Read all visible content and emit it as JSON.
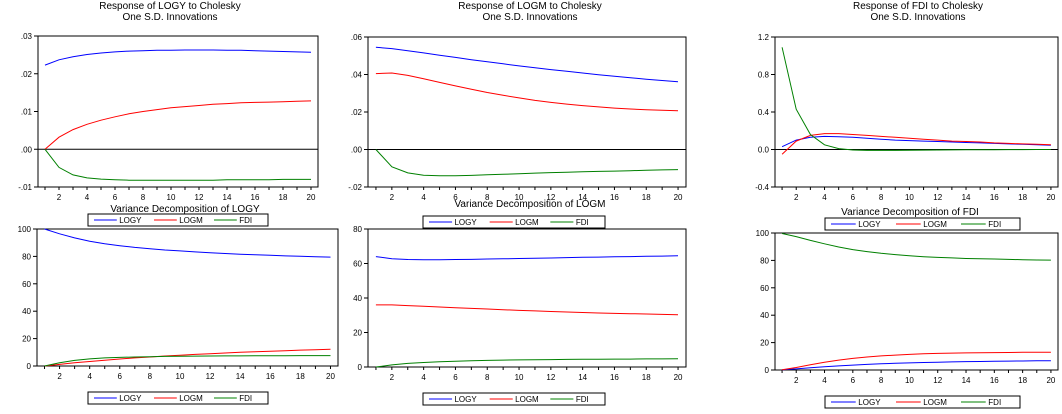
{
  "colors": {
    "LOGY": "#0000ff",
    "LOGM": "#ff0000",
    "FDI": "#008000",
    "axis": "#000000"
  },
  "chart_data": [
    {
      "type": "line",
      "title": [
        "Response of LOGY to Cholesky",
        "One S.D. Innovations"
      ],
      "x": [
        1,
        2,
        3,
        4,
        5,
        6,
        7,
        8,
        9,
        10,
        11,
        12,
        13,
        14,
        15,
        16,
        17,
        18,
        19,
        20
      ],
      "xticks": [
        "2",
        "4",
        "6",
        "8",
        "10",
        "12",
        "14",
        "16",
        "18",
        "20"
      ],
      "ylim": [
        -0.01,
        0.03
      ],
      "yticks": [
        ".03",
        ".02",
        ".01",
        ".00",
        "-.01"
      ],
      "ytick_values": [
        0.03,
        0.02,
        0.01,
        0.0,
        -0.01
      ],
      "zero_line": true,
      "series": [
        {
          "name": "LOGY",
          "values": [
            0.0223,
            0.0237,
            0.0245,
            0.0251,
            0.0255,
            0.0258,
            0.026,
            0.0261,
            0.0262,
            0.0262,
            0.0263,
            0.0263,
            0.0263,
            0.0262,
            0.0262,
            0.0261,
            0.026,
            0.0259,
            0.0258,
            0.0257
          ]
        },
        {
          "name": "LOGM",
          "values": [
            0.0,
            0.0032,
            0.0052,
            0.0066,
            0.0077,
            0.0086,
            0.0094,
            0.01,
            0.0105,
            0.011,
            0.0113,
            0.0116,
            0.0119,
            0.0121,
            0.0123,
            0.0124,
            0.0125,
            0.0126,
            0.0127,
            0.0128
          ]
        },
        {
          "name": "FDI",
          "values": [
            0.0,
            -0.0048,
            -0.0068,
            -0.0076,
            -0.0079,
            -0.0081,
            -0.0082,
            -0.0082,
            -0.0082,
            -0.0082,
            -0.0082,
            -0.0082,
            -0.0082,
            -0.0081,
            -0.0081,
            -0.0081,
            -0.0081,
            -0.008,
            -0.008,
            -0.008
          ]
        }
      ],
      "legend": [
        "LOGY",
        "LOGM",
        "FDI"
      ]
    },
    {
      "type": "line",
      "title": [
        "Response of LOGM to Cholesky",
        "One S.D. Innovations"
      ],
      "x": [
        1,
        2,
        3,
        4,
        5,
        6,
        7,
        8,
        9,
        10,
        11,
        12,
        13,
        14,
        15,
        16,
        17,
        18,
        19,
        20
      ],
      "xticks": [
        "2",
        "4",
        "6",
        "8",
        "10",
        "12",
        "14",
        "16",
        "18",
        "20"
      ],
      "ylim": [
        -0.02,
        0.06
      ],
      "yticks": [
        ".06",
        ".04",
        ".02",
        ".00",
        "-.02"
      ],
      "ytick_values": [
        0.06,
        0.04,
        0.02,
        0.0,
        -0.02
      ],
      "zero_line": true,
      "series": [
        {
          "name": "LOGY",
          "values": [
            0.0545,
            0.0538,
            0.0527,
            0.0515,
            0.0503,
            0.0491,
            0.0479,
            0.0468,
            0.0457,
            0.0446,
            0.0436,
            0.0426,
            0.0417,
            0.0408,
            0.0399,
            0.0391,
            0.0383,
            0.0375,
            0.0368,
            0.0361
          ]
        },
        {
          "name": "LOGM",
          "values": [
            0.0405,
            0.0408,
            0.0395,
            0.0377,
            0.0358,
            0.0339,
            0.0321,
            0.0304,
            0.0289,
            0.0275,
            0.0262,
            0.0251,
            0.0242,
            0.0234,
            0.0227,
            0.0221,
            0.0216,
            0.0212,
            0.0209,
            0.0207
          ]
        },
        {
          "name": "FDI",
          "values": [
            0.0,
            -0.0092,
            -0.0125,
            -0.0137,
            -0.014,
            -0.014,
            -0.0138,
            -0.0135,
            -0.0132,
            -0.0129,
            -0.0126,
            -0.0123,
            -0.0121,
            -0.0119,
            -0.0117,
            -0.0115,
            -0.0113,
            -0.0111,
            -0.0109,
            -0.0107
          ]
        }
      ],
      "legend": [
        "LOGY",
        "LOGM",
        "FDI"
      ]
    },
    {
      "type": "line",
      "title": [
        "Response of FDI to Cholesky",
        "One S.D. Innovations"
      ],
      "x": [
        1,
        2,
        3,
        4,
        5,
        6,
        7,
        8,
        9,
        10,
        11,
        12,
        13,
        14,
        15,
        16,
        17,
        18,
        19,
        20
      ],
      "xticks": [
        "2",
        "4",
        "6",
        "8",
        "10",
        "12",
        "14",
        "16",
        "18",
        "20"
      ],
      "ylim": [
        -0.4,
        1.2
      ],
      "yticks": [
        "1.2",
        "0.8",
        "0.4",
        "0.0",
        "-0.4"
      ],
      "ytick_values": [
        1.2,
        0.8,
        0.4,
        0.0,
        -0.4
      ],
      "zero_line": true,
      "series": [
        {
          "name": "LOGY",
          "values": [
            0.03,
            0.1,
            0.13,
            0.14,
            0.135,
            0.13,
            0.12,
            0.11,
            0.1,
            0.095,
            0.09,
            0.085,
            0.08,
            0.075,
            0.07,
            0.065,
            0.06,
            0.055,
            0.05,
            0.045
          ]
        },
        {
          "name": "LOGM",
          "values": [
            -0.05,
            0.09,
            0.15,
            0.17,
            0.17,
            0.16,
            0.15,
            0.14,
            0.13,
            0.12,
            0.11,
            0.1,
            0.09,
            0.085,
            0.08,
            0.07,
            0.065,
            0.06,
            0.055,
            0.05
          ]
        },
        {
          "name": "FDI",
          "values": [
            1.09,
            0.43,
            0.16,
            0.05,
            0.01,
            -0.005,
            -0.01,
            -0.01,
            -0.01,
            -0.008,
            -0.006,
            -0.005,
            -0.004,
            -0.003,
            -0.002,
            -0.002,
            -0.001,
            -0.001,
            0.0,
            0.0
          ]
        }
      ],
      "legend": [
        "LOGY",
        "LOGM",
        "FDI"
      ]
    },
    {
      "type": "line",
      "title": [
        "Variance Decomposition of LOGY"
      ],
      "x": [
        1,
        2,
        3,
        4,
        5,
        6,
        7,
        8,
        9,
        10,
        11,
        12,
        13,
        14,
        15,
        16,
        17,
        18,
        19,
        20
      ],
      "xticks": [
        "2",
        "4",
        "6",
        "8",
        "10",
        "12",
        "14",
        "16",
        "18",
        "20"
      ],
      "ylim": [
        0,
        100
      ],
      "yticks": [
        "100",
        "80",
        "60",
        "40",
        "20",
        "0"
      ],
      "ytick_values": [
        100,
        80,
        60,
        40,
        20,
        0
      ],
      "zero_line": false,
      "series": [
        {
          "name": "LOGY",
          "values": [
            100,
            96.5,
            93.5,
            91,
            89.2,
            87.8,
            86.6,
            85.6,
            84.7,
            84,
            83.3,
            82.7,
            82.1,
            81.6,
            81.2,
            80.8,
            80.4,
            80.1,
            79.8,
            79.5
          ]
        },
        {
          "name": "LOGM",
          "values": [
            0,
            1.2,
            2.3,
            3.3,
            4.2,
            5.1,
            5.9,
            6.6,
            7.3,
            7.9,
            8.5,
            9,
            9.5,
            10,
            10.4,
            10.8,
            11.2,
            11.6,
            11.9,
            12.2
          ]
        },
        {
          "name": "FDI",
          "values": [
            0,
            2.3,
            4.1,
            5.2,
            5.9,
            6.3,
            6.6,
            6.8,
            7,
            7.1,
            7.2,
            7.3,
            7.4,
            7.4,
            7.5,
            7.5,
            7.5,
            7.6,
            7.6,
            7.6
          ]
        }
      ],
      "legend": [
        "LOGY",
        "LOGM",
        "FDI"
      ]
    },
    {
      "type": "line",
      "title": [
        "Variance Decomposition of LOGM"
      ],
      "x": [
        1,
        2,
        3,
        4,
        5,
        6,
        7,
        8,
        9,
        10,
        11,
        12,
        13,
        14,
        15,
        16,
        17,
        18,
        19,
        20
      ],
      "xticks": [
        "2",
        "4",
        "6",
        "8",
        "10",
        "12",
        "14",
        "16",
        "18",
        "20"
      ],
      "ylim": [
        0,
        80
      ],
      "yticks": [
        "80",
        "60",
        "40",
        "20",
        "0"
      ],
      "ytick_values": [
        80,
        60,
        40,
        20,
        0
      ],
      "zero_line": false,
      "series": [
        {
          "name": "LOGY",
          "values": [
            64,
            62.8,
            62.3,
            62.2,
            62.2,
            62.3,
            62.4,
            62.6,
            62.7,
            62.9,
            63.1,
            63.2,
            63.4,
            63.6,
            63.7,
            63.9,
            64,
            64.2,
            64.3,
            64.5
          ]
        },
        {
          "name": "LOGM",
          "values": [
            36,
            36,
            35.6,
            35.2,
            34.8,
            34.4,
            34,
            33.6,
            33.2,
            32.8,
            32.5,
            32.2,
            31.9,
            31.6,
            31.3,
            31.1,
            30.9,
            30.7,
            30.5,
            30.3
          ]
        },
        {
          "name": "FDI",
          "values": [
            0,
            1.2,
            2.1,
            2.6,
            3,
            3.3,
            3.6,
            3.8,
            4,
            4.1,
            4.2,
            4.3,
            4.4,
            4.5,
            4.5,
            4.6,
            4.6,
            4.7,
            4.7,
            4.8
          ]
        }
      ],
      "legend": [
        "LOGY",
        "LOGM",
        "FDI"
      ]
    },
    {
      "type": "line",
      "title": [
        "Variance Decomposition of FDI"
      ],
      "x": [
        1,
        2,
        3,
        4,
        5,
        6,
        7,
        8,
        9,
        10,
        11,
        12,
        13,
        14,
        15,
        16,
        17,
        18,
        19,
        20
      ],
      "xticks": [
        "2",
        "4",
        "6",
        "8",
        "10",
        "12",
        "14",
        "16",
        "18",
        "20"
      ],
      "ylim": [
        0,
        100
      ],
      "yticks": [
        "100",
        "80",
        "60",
        "40",
        "20",
        "0"
      ],
      "ytick_values": [
        100,
        80,
        60,
        40,
        20,
        0
      ],
      "zero_line": false,
      "series": [
        {
          "name": "LOGY",
          "values": [
            0.2,
            0.8,
            1.6,
            2.3,
            3,
            3.6,
            4.1,
            4.5,
            4.9,
            5.2,
            5.5,
            5.7,
            5.9,
            6.1,
            6.2,
            6.4,
            6.5,
            6.6,
            6.7,
            6.8
          ]
        },
        {
          "name": "LOGM",
          "values": [
            0.2,
            1.8,
            3.8,
            5.6,
            7.2,
            8.5,
            9.5,
            10.3,
            10.9,
            11.4,
            11.8,
            12.1,
            12.3,
            12.5,
            12.6,
            12.7,
            12.8,
            12.9,
            13,
            13
          ]
        },
        {
          "name": "FDI",
          "values": [
            99.6,
            97.4,
            94.6,
            92.1,
            89.8,
            87.9,
            86.4,
            85.2,
            84.2,
            83.4,
            82.7,
            82.2,
            81.8,
            81.4,
            81.2,
            81,
            80.7,
            80.5,
            80.3,
            80.2
          ]
        }
      ],
      "legend": [
        "LOGY",
        "LOGM",
        "FDI"
      ]
    }
  ]
}
